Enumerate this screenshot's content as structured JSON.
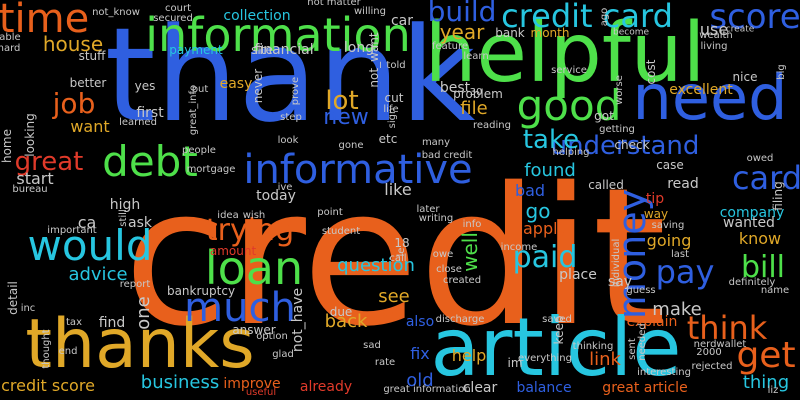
{
  "colors": {
    "background": "#000000",
    "orange": "#e8601c",
    "blue": "#2f5fe0",
    "green": "#4ee04a",
    "cyan": "#27c6e0",
    "gold": "#e0a828",
    "red": "#e03a2a",
    "gray": "#c8c8c8"
  },
  "words": [
    {
      "text": "credit",
      "color": "orange",
      "weight": 100
    },
    {
      "text": "thank",
      "color": "blue",
      "weight": 70
    },
    {
      "text": "article",
      "color": "cyan",
      "weight": 48
    },
    {
      "text": "thanks",
      "color": "gold",
      "weight": 40
    },
    {
      "text": "helpful",
      "color": "green",
      "weight": 46
    },
    {
      "text": "need",
      "color": "blue",
      "weight": 34
    },
    {
      "text": "information",
      "color": "green",
      "weight": 26
    },
    {
      "text": "time",
      "color": "orange",
      "weight": 22
    },
    {
      "text": "credit card",
      "color": "cyan",
      "weight": 18
    },
    {
      "text": "score",
      "color": "blue",
      "weight": 18
    },
    {
      "text": "informative",
      "color": "blue",
      "weight": 22
    },
    {
      "text": "debt",
      "color": "green",
      "weight": 22
    },
    {
      "text": "good",
      "color": "green",
      "weight": 22
    },
    {
      "text": "would",
      "color": "cyan",
      "weight": 24
    },
    {
      "text": "loan",
      "color": "green",
      "weight": 26
    },
    {
      "text": "much",
      "color": "blue",
      "weight": 26
    },
    {
      "text": "money",
      "color": "blue",
      "weight": 22
    },
    {
      "text": "get",
      "color": "orange",
      "weight": 24
    },
    {
      "text": "think",
      "color": "orange",
      "weight": 20
    },
    {
      "text": "pay",
      "color": "blue",
      "weight": 20
    },
    {
      "text": "bill",
      "color": "green",
      "weight": 18
    },
    {
      "text": "card",
      "color": "blue",
      "weight": 18
    },
    {
      "text": "build",
      "color": "blue",
      "weight": 16
    },
    {
      "text": "job",
      "color": "orange",
      "weight": 16
    },
    {
      "text": "great",
      "color": "red",
      "weight": 16
    },
    {
      "text": "trying",
      "color": "orange",
      "weight": 16
    },
    {
      "text": "paid",
      "color": "cyan",
      "weight": 16
    },
    {
      "text": "understand",
      "color": "blue",
      "weight": 14
    },
    {
      "text": "take",
      "color": "cyan",
      "weight": 14
    },
    {
      "text": "lot",
      "color": "gold",
      "weight": 14
    },
    {
      "text": "new",
      "color": "blue",
      "weight": 14
    },
    {
      "text": "year",
      "color": "gold",
      "weight": 12
    },
    {
      "text": "house",
      "color": "gold",
      "weight": 12
    },
    {
      "text": "advice",
      "color": "cyan",
      "weight": 12
    },
    {
      "text": "question",
      "color": "cyan",
      "weight": 12
    },
    {
      "text": "business",
      "color": "cyan",
      "weight": 12
    },
    {
      "text": "make",
      "color": "gray",
      "weight": 12
    },
    {
      "text": "thing",
      "color": "cyan",
      "weight": 12
    },
    {
      "text": "found",
      "color": "cyan",
      "weight": 12
    },
    {
      "text": "going",
      "color": "gold",
      "weight": 11
    },
    {
      "text": "know",
      "color": "gold",
      "weight": 11
    },
    {
      "text": "link",
      "color": "orange",
      "weight": 12
    },
    {
      "text": "apply",
      "color": "orange",
      "weight": 11
    },
    {
      "text": "go",
      "color": "cyan",
      "weight": 12
    },
    {
      "text": "bad",
      "color": "blue",
      "weight": 11
    },
    {
      "text": "well",
      "color": "green",
      "weight": 11
    },
    {
      "text": "back",
      "color": "gold",
      "weight": 11
    },
    {
      "text": "see",
      "color": "gold",
      "weight": 11
    },
    {
      "text": "cash",
      "color": "orange",
      "weight": 10
    },
    {
      "text": "file",
      "color": "gold",
      "weight": 10
    },
    {
      "text": "like",
      "color": "gray",
      "weight": 10
    },
    {
      "text": "fix",
      "color": "blue",
      "weight": 10
    },
    {
      "text": "old",
      "color": "blue",
      "weight": 10
    },
    {
      "text": "help",
      "color": "gold",
      "weight": 10
    },
    {
      "text": "already",
      "color": "red",
      "weight": 10
    },
    {
      "text": "clear",
      "color": "gray",
      "weight": 10
    },
    {
      "text": "balance",
      "color": "blue",
      "weight": 10
    },
    {
      "text": "great article",
      "color": "orange",
      "weight": 9
    },
    {
      "text": "credit score",
      "color": "gold",
      "weight": 9
    },
    {
      "text": "improve",
      "color": "orange",
      "weight": 9
    },
    {
      "text": "explain",
      "color": "orange",
      "weight": 9
    },
    {
      "text": "place",
      "color": "gray",
      "weight": 9
    },
    {
      "text": "say",
      "color": "gray",
      "weight": 9
    },
    {
      "text": "also",
      "color": "blue",
      "weight": 9
    },
    {
      "text": "find",
      "color": "gray",
      "weight": 9
    },
    {
      "text": "one",
      "color": "gray",
      "weight": 9
    },
    {
      "text": "ask",
      "color": "gray",
      "weight": 9
    },
    {
      "text": "high",
      "color": "gray",
      "weight": 9
    },
    {
      "text": "start",
      "color": "gray",
      "weight": 9
    },
    {
      "text": "ca",
      "color": "gray",
      "weight": 9
    },
    {
      "text": "want",
      "color": "gold",
      "weight": 9
    },
    {
      "text": "wanted",
      "color": "gray",
      "weight": 8
    },
    {
      "text": "company",
      "color": "cyan",
      "weight": 8
    },
    {
      "text": "way",
      "color": "gold",
      "weight": 8
    },
    {
      "text": "called",
      "color": "gray",
      "weight": 8
    },
    {
      "text": "tip",
      "color": "red",
      "weight": 8
    },
    {
      "text": "read",
      "color": "gray",
      "weight": 8
    },
    {
      "text": "case",
      "color": "gray",
      "weight": 8
    },
    {
      "text": "check",
      "color": "gray",
      "weight": 8
    },
    {
      "text": "excellent",
      "color": "gold",
      "weight": 8
    },
    {
      "text": "best",
      "color": "gray",
      "weight": 8
    },
    {
      "text": "month",
      "color": "gold",
      "weight": 7
    },
    {
      "text": "bank",
      "color": "gray",
      "weight": 7
    },
    {
      "text": "nice",
      "color": "gray",
      "weight": 7
    },
    {
      "text": "use",
      "color": "gray",
      "weight": 8
    },
    {
      "text": "cost",
      "color": "gray",
      "weight": 7
    },
    {
      "text": "got",
      "color": "gray",
      "weight": 7
    },
    {
      "text": "financial",
      "color": "gray",
      "weight": 7
    },
    {
      "text": "payment",
      "color": "cyan",
      "weight": 7
    },
    {
      "text": "collection",
      "color": "cyan",
      "weight": 8
    },
    {
      "text": "site",
      "color": "gray",
      "weight": 7
    },
    {
      "text": "long",
      "color": "gray",
      "weight": 7
    },
    {
      "text": "car",
      "color": "gray",
      "weight": 8
    },
    {
      "text": "cut",
      "color": "gray",
      "weight": 7
    },
    {
      "text": "etc",
      "color": "gray",
      "weight": 7
    },
    {
      "text": "today",
      "color": "gray",
      "weight": 7
    },
    {
      "text": "amount",
      "color": "red",
      "weight": 7
    },
    {
      "text": "due",
      "color": "gray",
      "weight": 7
    },
    {
      "text": "bankruptcy",
      "color": "gray",
      "weight": 7
    },
    {
      "text": "answer",
      "color": "gray",
      "weight": 7
    },
    {
      "text": "yes",
      "color": "gray",
      "weight": 7
    },
    {
      "text": "first",
      "color": "gray",
      "weight": 7
    },
    {
      "text": "easy",
      "color": "gold",
      "weight": 7
    },
    {
      "text": "better",
      "color": "gray",
      "weight": 7
    },
    {
      "text": "looking",
      "color": "gray",
      "weight": 7
    },
    {
      "text": "stuff",
      "color": "gray",
      "weight": 6
    },
    {
      "text": "never",
      "color": "gray",
      "weight": 6
    },
    {
      "text": "not_have",
      "color": "gray",
      "weight": 7
    },
    {
      "text": "not_want",
      "color": "gray",
      "weight": 6
    },
    {
      "text": "not_know",
      "color": "gray",
      "weight": 4
    },
    {
      "text": "court",
      "color": "gray",
      "weight": 4
    },
    {
      "text": "secured",
      "color": "gray",
      "weight": 4
    },
    {
      "text": "not matter",
      "color": "gray",
      "weight": 4
    },
    {
      "text": "willing",
      "color": "gray",
      "weight": 4
    },
    {
      "text": "feature",
      "color": "gray",
      "weight": 4
    },
    {
      "text": "ago",
      "color": "gray",
      "weight": 4
    },
    {
      "text": "living",
      "color": "gray",
      "weight": 4
    },
    {
      "text": "create",
      "color": "gray",
      "weight": 4
    },
    {
      "text": "wealth",
      "color": "gray",
      "weight": 4
    },
    {
      "text": "become",
      "color": "gray",
      "weight": 4
    },
    {
      "text": "big",
      "color": "gray",
      "weight": 4
    },
    {
      "text": "hard",
      "color": "gray",
      "weight": 4
    },
    {
      "text": "able",
      "color": "gray",
      "weight": 4
    },
    {
      "text": "learn",
      "color": "gray",
      "weight": 4
    },
    {
      "text": "told",
      "color": "gray",
      "weight": 4
    },
    {
      "text": "service",
      "color": "gray",
      "weight": 4
    },
    {
      "text": "worse",
      "color": "gray",
      "weight": 4
    },
    {
      "text": "problem",
      "color": "gray",
      "weight": 5
    },
    {
      "text": "30",
      "color": "gray",
      "weight": 5
    },
    {
      "text": "reading",
      "color": "gray",
      "weight": 4
    },
    {
      "text": "getting",
      "color": "gray",
      "weight": 4
    },
    {
      "text": "bad credit",
      "color": "gray",
      "weight": 4
    },
    {
      "text": "many",
      "color": "gray",
      "weight": 4
    },
    {
      "text": "helping",
      "color": "gray",
      "weight": 4
    },
    {
      "text": "owed",
      "color": "gray",
      "weight": 4
    },
    {
      "text": "filing",
      "color": "gray",
      "weight": 5
    },
    {
      "text": "saving",
      "color": "gray",
      "weight": 4
    },
    {
      "text": "last",
      "color": "gray",
      "weight": 4
    },
    {
      "text": "individual",
      "color": "gray",
      "weight": 4
    },
    {
      "text": "guess",
      "color": "gray",
      "weight": 4
    },
    {
      "text": "definitely",
      "color": "gray",
      "weight": 4
    },
    {
      "text": "name",
      "color": "gray",
      "weight": 4
    },
    {
      "text": "nerdwallet",
      "color": "gray",
      "weight": 4
    },
    {
      "text": "2000",
      "color": "gray",
      "weight": 4
    },
    {
      "text": "rejected",
      "color": "gray",
      "weight": 4
    },
    {
      "text": "interesting",
      "color": "gray",
      "weight": 4
    },
    {
      "text": "liz",
      "color": "gray",
      "weight": 4
    },
    {
      "text": "needed",
      "color": "gray",
      "weight": 4
    },
    {
      "text": "sent",
      "color": "gray",
      "weight": 4
    },
    {
      "text": "thinking",
      "color": "gray",
      "weight": 4
    },
    {
      "text": "saved",
      "color": "gray",
      "weight": 4
    },
    {
      "text": "discharge",
      "color": "gray",
      "weight": 4
    },
    {
      "text": "keep",
      "color": "gray",
      "weight": 5
    },
    {
      "text": "everything",
      "color": "gray",
      "weight": 4
    },
    {
      "text": "income",
      "color": "gray",
      "weight": 4
    },
    {
      "text": "created",
      "color": "gray",
      "weight": 4
    },
    {
      "text": "close",
      "color": "gray",
      "weight": 4
    },
    {
      "text": "owe",
      "color": "gray",
      "weight": 4
    },
    {
      "text": "info",
      "color": "gray",
      "weight": 4
    },
    {
      "text": "call",
      "color": "gray",
      "weight": 4
    },
    {
      "text": "le",
      "color": "gray",
      "weight": 4
    },
    {
      "text": "18",
      "color": "gray",
      "weight": 5
    },
    {
      "text": "writing",
      "color": "gray",
      "weight": 4
    },
    {
      "text": "later",
      "color": "gray",
      "weight": 4
    },
    {
      "text": "point",
      "color": "gray",
      "weight": 4
    },
    {
      "text": "student",
      "color": "gray",
      "weight": 4
    },
    {
      "text": "idea",
      "color": "gray",
      "weight": 4
    },
    {
      "text": "wish",
      "color": "gray",
      "weight": 4
    },
    {
      "text": "ive",
      "color": "gray",
      "weight": 4
    },
    {
      "text": "mortgage",
      "color": "gray",
      "weight": 4
    },
    {
      "text": "people",
      "color": "gray",
      "weight": 4
    },
    {
      "text": "gone",
      "color": "gray",
      "weight": 4
    },
    {
      "text": "life",
      "color": "gray",
      "weight": 4
    },
    {
      "text": "sign",
      "color": "gray",
      "weight": 4
    },
    {
      "text": "step",
      "color": "gray",
      "weight": 4
    },
    {
      "text": "look",
      "color": "gray",
      "weight": 4
    },
    {
      "text": "learned",
      "color": "gray",
      "weight": 4
    },
    {
      "text": "put",
      "color": "gray",
      "weight": 4
    },
    {
      "text": "prove",
      "color": "gray",
      "weight": 4
    },
    {
      "text": "great_info",
      "color": "gray",
      "weight": 4
    },
    {
      "text": "still",
      "color": "gray",
      "weight": 4
    },
    {
      "text": "report",
      "color": "gray",
      "weight": 4
    },
    {
      "text": "important",
      "color": "gray",
      "weight": 4
    },
    {
      "text": "bureau",
      "color": "gray",
      "weight": 4
    },
    {
      "text": "home",
      "color": "gray",
      "weight": 5
    },
    {
      "text": "detail",
      "color": "gray",
      "weight": 5
    },
    {
      "text": "inc",
      "color": "gray",
      "weight": 4
    },
    {
      "text": "tax",
      "color": "gray",
      "weight": 4
    },
    {
      "text": "thought",
      "color": "gray",
      "weight": 4
    },
    {
      "text": "end",
      "color": "gray",
      "weight": 4
    },
    {
      "text": "option",
      "color": "gray",
      "weight": 4
    },
    {
      "text": "glad",
      "color": "gray",
      "weight": 4
    },
    {
      "text": "useful",
      "color": "red",
      "weight": 4
    },
    {
      "text": "sad",
      "color": "gray",
      "weight": 4
    },
    {
      "text": "rate",
      "color": "gray",
      "weight": 4
    },
    {
      "text": "great information",
      "color": "gray",
      "weight": 4
    },
    {
      "text": "im",
      "color": "gray",
      "weight": 5
    }
  ]
}
